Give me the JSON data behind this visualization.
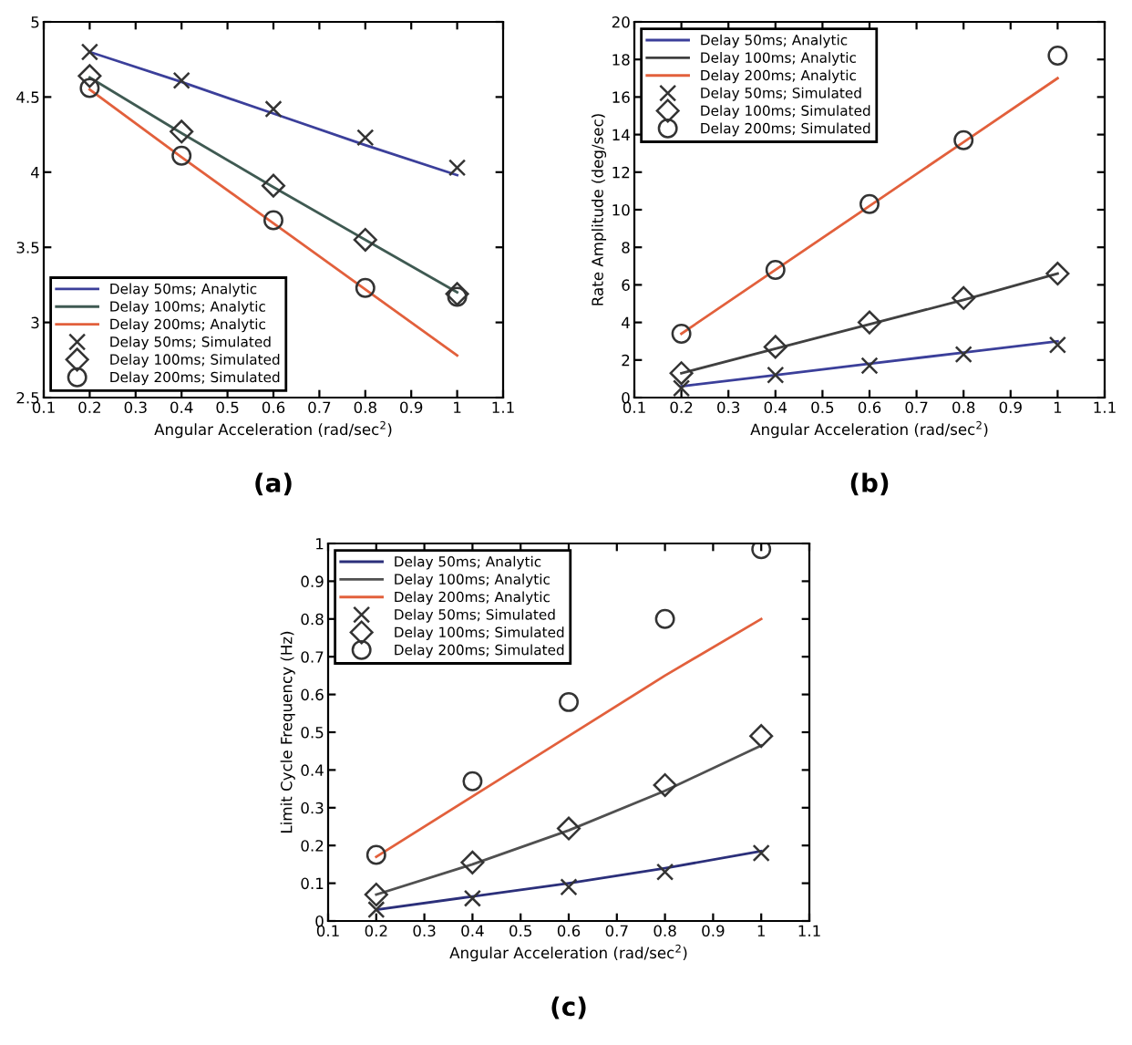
{
  "chart_data": [
    {
      "type": "line",
      "title": "(a)",
      "xlabel": "Angular Acceleration (rad/sec$^{2}$)",
      "x": [
        0.2,
        0.4,
        0.6,
        0.8,
        1.0
      ],
      "xlim": [
        0.1,
        1.1
      ],
      "xticks": [
        0.1,
        0.2,
        0.3,
        0.4,
        0.5,
        0.6,
        0.7,
        0.8,
        0.9,
        1,
        1.1
      ],
      "ylim": [
        2.5,
        5
      ],
      "yticks": [
        2.5,
        3,
        3.5,
        4,
        4.5,
        5
      ],
      "legend": "bottom left",
      "grid": false,
      "series": [
        {
          "name": "Delay 50ms; Analytic",
          "color": "#3b3f9a",
          "values": [
            4.8,
            4.6,
            4.39,
            4.18,
            3.98
          ]
        },
        {
          "name": "Delay 100ms; Analytic",
          "color": "#3f5a52",
          "values": [
            4.63,
            4.26,
            3.9,
            3.55,
            3.2
          ]
        },
        {
          "name": "Delay 200ms; Analytic",
          "color": "#e2603c",
          "values": [
            4.55,
            4.1,
            3.66,
            3.22,
            2.78
          ]
        },
        {
          "name": "Delay 50ms; Simulated",
          "type": "scatter",
          "marker": "cross",
          "color": "#333333",
          "values": [
            4.8,
            4.61,
            4.42,
            4.23,
            4.03
          ]
        },
        {
          "name": "Delay 100ms; Simulated",
          "type": "scatter",
          "marker": "diamond",
          "color": "#333333",
          "values": [
            4.64,
            4.27,
            3.91,
            3.55,
            3.19
          ]
        },
        {
          "name": "Delay 200ms; Simulated",
          "type": "scatter",
          "marker": "circle",
          "color": "#333333",
          "values": [
            4.56,
            4.11,
            3.68,
            3.23,
            3.17
          ]
        }
      ]
    },
    {
      "type": "line",
      "title": "(b)",
      "xlabel": "Angular Acceleration (rad/sec$^{2}$)",
      "ylabel": "Rate Amplitude (deg/sec)",
      "x": [
        0.2,
        0.4,
        0.6,
        0.8,
        1.0
      ],
      "xlim": [
        0.1,
        1.1
      ],
      "xticks": [
        0.1,
        0.2,
        0.3,
        0.4,
        0.5,
        0.6,
        0.7,
        0.8,
        0.9,
        1,
        1.1
      ],
      "ylim": [
        0,
        20
      ],
      "yticks": [
        0,
        2,
        4,
        6,
        8,
        10,
        12,
        14,
        16,
        18,
        20
      ],
      "legend": "top left",
      "grid": false,
      "series": [
        {
          "name": "Delay 50ms; Analytic",
          "color": "#3b3f9a",
          "values": [
            0.6,
            1.2,
            1.8,
            2.4,
            3.0
          ]
        },
        {
          "name": "Delay 100ms; Analytic",
          "color": "#404040",
          "values": [
            1.3,
            2.6,
            3.9,
            5.2,
            6.6
          ]
        },
        {
          "name": "Delay 200ms; Analytic",
          "color": "#e2603c",
          "values": [
            3.4,
            6.8,
            10.2,
            13.6,
            17.0
          ]
        },
        {
          "name": "Delay 50ms; Simulated",
          "type": "scatter",
          "marker": "cross",
          "color": "#333333",
          "values": [
            0.5,
            1.2,
            1.7,
            2.3,
            2.8
          ]
        },
        {
          "name": "Delay 100ms; Simulated",
          "type": "scatter",
          "marker": "diamond",
          "color": "#333333",
          "values": [
            1.3,
            2.7,
            4.0,
            5.3,
            6.6
          ]
        },
        {
          "name": "Delay 200ms; Simulated",
          "type": "scatter",
          "marker": "circle",
          "color": "#333333",
          "values": [
            3.4,
            6.8,
            10.3,
            13.7,
            18.2
          ]
        }
      ]
    },
    {
      "type": "line",
      "title": "(c)",
      "xlabel": "Angular Acceleration (rad/sec$^{2}$)",
      "ylabel": "Limit Cycle Frequency (Hz)",
      "x": [
        0.2,
        0.4,
        0.6,
        0.8,
        1.0
      ],
      "xlim": [
        0.1,
        1.1
      ],
      "xticks": [
        0.1,
        0.2,
        0.3,
        0.4,
        0.5,
        0.6,
        0.7,
        0.8,
        0.9,
        1,
        1.1
      ],
      "ylim": [
        0,
        1
      ],
      "yticks": [
        0,
        0.1,
        0.2,
        0.3,
        0.4,
        0.5,
        0.6,
        0.7,
        0.8,
        0.9,
        1
      ],
      "legend": "top left",
      "grid": false,
      "series": [
        {
          "name": "Delay 50ms; Analytic",
          "color": "#2b2f7a",
          "values": [
            0.03,
            0.065,
            0.1,
            0.14,
            0.185
          ]
        },
        {
          "name": "Delay 100ms; Analytic",
          "color": "#505050",
          "values": [
            0.07,
            0.15,
            0.24,
            0.345,
            0.465
          ]
        },
        {
          "name": "Delay 200ms; Analytic",
          "color": "#e2603c",
          "values": [
            0.17,
            0.33,
            0.49,
            0.65,
            0.8
          ]
        },
        {
          "name": "Delay 50ms; Simulated",
          "type": "scatter",
          "marker": "cross",
          "color": "#333333",
          "values": [
            0.03,
            0.06,
            0.09,
            0.13,
            0.18
          ]
        },
        {
          "name": "Delay 100ms; Simulated",
          "type": "scatter",
          "marker": "diamond",
          "color": "#333333",
          "values": [
            0.07,
            0.155,
            0.245,
            0.36,
            0.49
          ]
        },
        {
          "name": "Delay 200ms; Simulated",
          "type": "scatter",
          "marker": "circle",
          "color": "#333333",
          "values": [
            0.175,
            0.37,
            0.58,
            0.8,
            0.985
          ]
        }
      ]
    }
  ]
}
